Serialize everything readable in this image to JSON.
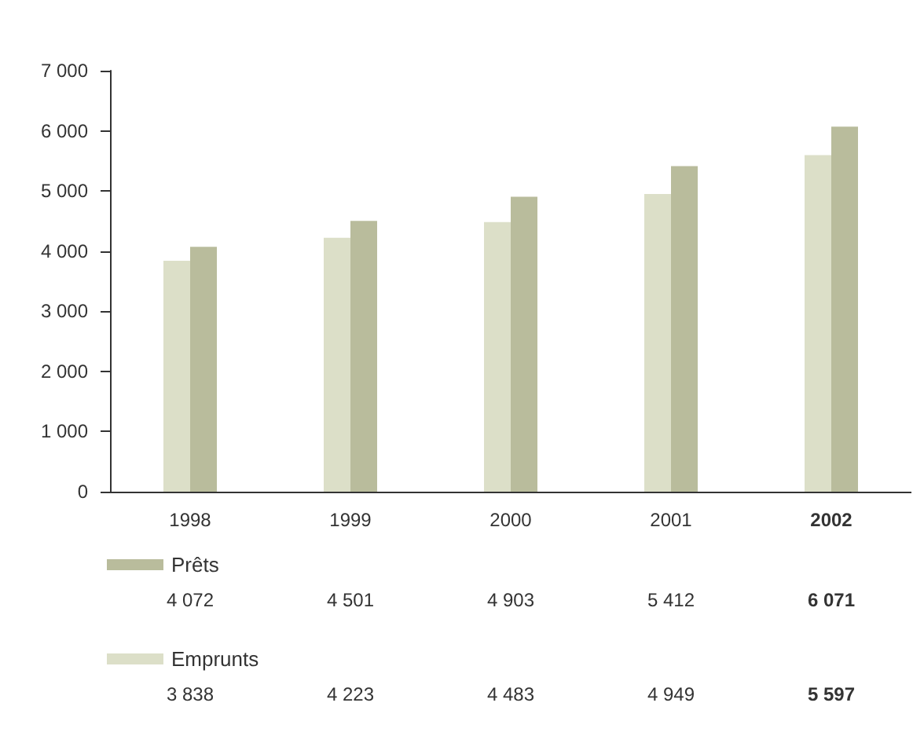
{
  "chart_data": {
    "type": "bar",
    "categories": [
      "1998",
      "1999",
      "2000",
      "2001",
      "2002"
    ],
    "series": [
      {
        "name": "Emprunts",
        "color": "#dcdfc8",
        "values": [
          3838,
          4223,
          4483,
          4949,
          5597
        ],
        "value_labels": [
          "3 838",
          "4 223",
          "4 483",
          "4 949",
          "5 597"
        ]
      },
      {
        "name": "Prêts",
        "color": "#b9bc9c",
        "values": [
          4072,
          4501,
          4903,
          5412,
          6071
        ],
        "value_labels": [
          "4 072",
          "4 501",
          "4 903",
          "5 412",
          "6 071"
        ]
      }
    ],
    "ylim": [
      0,
      7000
    ],
    "yticks": [
      {
        "value": 0,
        "label": "0"
      },
      {
        "value": 1000,
        "label": "1 000"
      },
      {
        "value": 2000,
        "label": "2 000"
      },
      {
        "value": 3000,
        "label": "3 000"
      },
      {
        "value": 4000,
        "label": "4 000"
      },
      {
        "value": 5000,
        "label": "5 000"
      },
      {
        "value": 6000,
        "label": "6 000"
      },
      {
        "value": 7000,
        "label": "7 000"
      }
    ],
    "grid": false,
    "legend": "bottom left"
  }
}
